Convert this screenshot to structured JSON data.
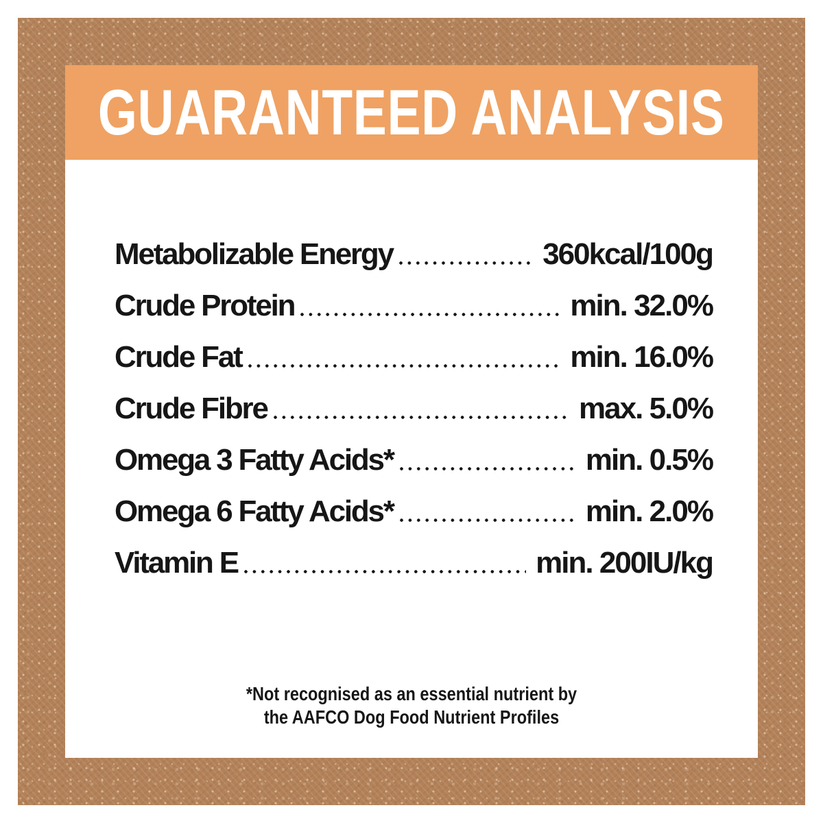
{
  "header": {
    "title": "GUARANTEED ANALYSIS"
  },
  "table": {
    "rows": [
      {
        "label": "Metabolizable Energy",
        "value": "360kcal/100g"
      },
      {
        "label": "Crude Protein",
        "value": "min. 32.0%"
      },
      {
        "label": "Crude Fat",
        "value": "min. 16.0%"
      },
      {
        "label": "Crude Fibre",
        "value": "max. 5.0%"
      },
      {
        "label": "Omega 3 Fatty Acids*",
        "value": "min. 0.5%"
      },
      {
        "label": "Omega 6 Fatty Acids*",
        "value": "min. 2.0%"
      },
      {
        "label": "Vitamin E",
        "value": "min. 200IU/kg"
      }
    ]
  },
  "footnote": {
    "line1": "*Not recognised as an essential nutrient by",
    "line2": "the AAFCO Dog Food Nutrient Profiles"
  },
  "colors": {
    "header_bg": "#efa263",
    "frame_bg": "#b28159",
    "panel_bg": "#ffffff",
    "text": "#161616"
  }
}
